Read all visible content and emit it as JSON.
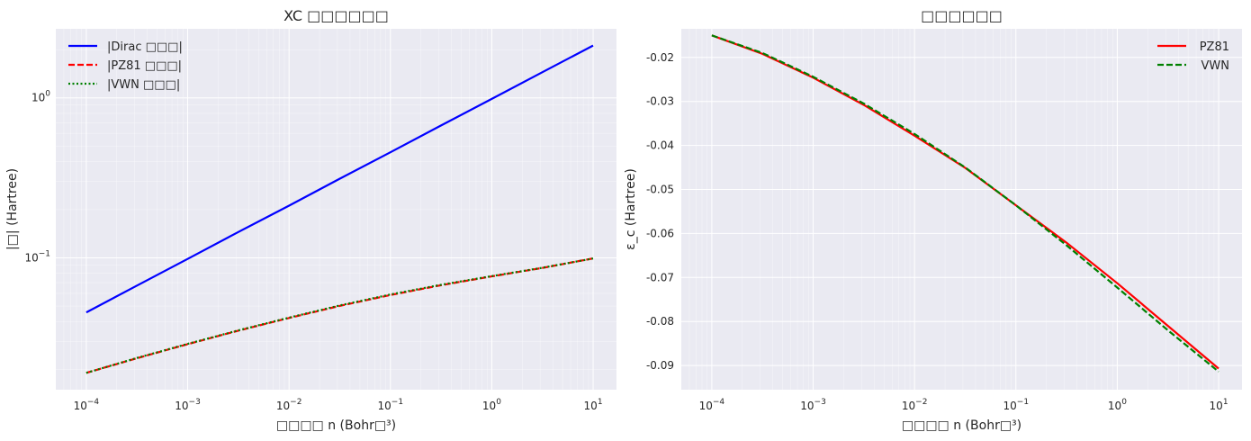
{
  "chart_data": [
    {
      "type": "line",
      "title": "XC □□□□□□",
      "xlabel": "□□□□ n (Bohr□³)",
      "ylabel": "|□| (Hartree)",
      "xscale": "log",
      "yscale": "log",
      "xlim": [
        5e-05,
        17
      ],
      "ylim": [
        0.015,
        2.7
      ],
      "grid": true,
      "legend_position": "upper-left",
      "x_ticks": [
        {
          "value": 0.0001,
          "base": "10",
          "exp": "−4"
        },
        {
          "value": 0.001,
          "base": "10",
          "exp": "−3"
        },
        {
          "value": 0.01,
          "base": "10",
          "exp": "−2"
        },
        {
          "value": 0.1,
          "base": "10",
          "exp": "−1"
        },
        {
          "value": 1,
          "base": "10",
          "exp": "0"
        },
        {
          "value": 10,
          "base": "10",
          "exp": "1"
        }
      ],
      "y_ticks": [
        {
          "value": 0.1,
          "base": "10",
          "exp": "−1"
        },
        {
          "value": 1,
          "base": "10",
          "exp": "0"
        }
      ],
      "x": [
        0.0001,
        0.000316,
        0.001,
        0.00316,
        0.01,
        0.0316,
        0.1,
        0.316,
        1,
        3.16,
        10
      ],
      "series": [
        {
          "name": "|Dirac □□□|",
          "color": "#0000ff",
          "style": "solid",
          "values": [
            0.0456,
            0.0671,
            0.0985,
            0.145,
            0.212,
            0.312,
            0.457,
            0.672,
            0.985,
            1.446,
            2.122
          ]
        },
        {
          "name": "|PZ81 □□□|",
          "color": "#ff0000",
          "style": "dashed",
          "values": [
            0.0191,
            0.0236,
            0.0289,
            0.0351,
            0.0421,
            0.0501,
            0.0586,
            0.0675,
            0.0766,
            0.0865,
            0.0992
          ]
        },
        {
          "name": "|VWN □□□|",
          "color": "#008000",
          "style": "dotted",
          "values": [
            0.0191,
            0.0237,
            0.029,
            0.0352,
            0.0423,
            0.0504,
            0.059,
            0.0679,
            0.0769,
            0.0867,
            0.0991
          ]
        }
      ]
    },
    {
      "type": "line",
      "title": "□□□□□□",
      "xlabel": "□□□□ n (Bohr□³)",
      "ylabel": "ε_c (Hartree)",
      "xscale": "log",
      "yscale": "linear",
      "xlim": [
        5e-05,
        17
      ],
      "ylim": [
        -0.0955,
        -0.0135
      ],
      "grid": true,
      "legend_position": "upper-right",
      "x_ticks": [
        {
          "value": 0.0001,
          "base": "10",
          "exp": "−4"
        },
        {
          "value": 0.001,
          "base": "10",
          "exp": "−3"
        },
        {
          "value": 0.01,
          "base": "10",
          "exp": "−2"
        },
        {
          "value": 0.1,
          "base": "10",
          "exp": "−1"
        },
        {
          "value": 1,
          "base": "10",
          "exp": "0"
        },
        {
          "value": 10,
          "base": "10",
          "exp": "1"
        }
      ],
      "y_ticks": [
        {
          "value": -0.02,
          "label": "-0.02"
        },
        {
          "value": -0.03,
          "label": "-0.03"
        },
        {
          "value": -0.04,
          "label": "-0.04"
        },
        {
          "value": -0.05,
          "label": "-0.05"
        },
        {
          "value": -0.06,
          "label": "-0.06"
        },
        {
          "value": -0.07,
          "label": "-0.07"
        },
        {
          "value": -0.08,
          "label": "-0.08"
        },
        {
          "value": -0.09,
          "label": "-0.09"
        }
      ],
      "x": [
        0.0001,
        0.000316,
        0.001,
        0.00316,
        0.01,
        0.0316,
        0.1,
        0.316,
        1,
        3.16,
        10
      ],
      "series": [
        {
          "name": "PZ81",
          "color": "#ff0000",
          "style": "solid",
          "values": [
            -0.015,
            -0.0192,
            -0.0246,
            -0.0308,
            -0.0378,
            -0.0451,
            -0.0536,
            -0.0621,
            -0.0713,
            -0.081,
            -0.0907
          ]
        },
        {
          "name": "VWN",
          "color": "#008000",
          "style": "dashed",
          "values": [
            -0.015,
            -0.019,
            -0.0244,
            -0.0305,
            -0.0374,
            -0.045,
            -0.0536,
            -0.0627,
            -0.0723,
            -0.082,
            -0.0914
          ]
        }
      ]
    }
  ]
}
